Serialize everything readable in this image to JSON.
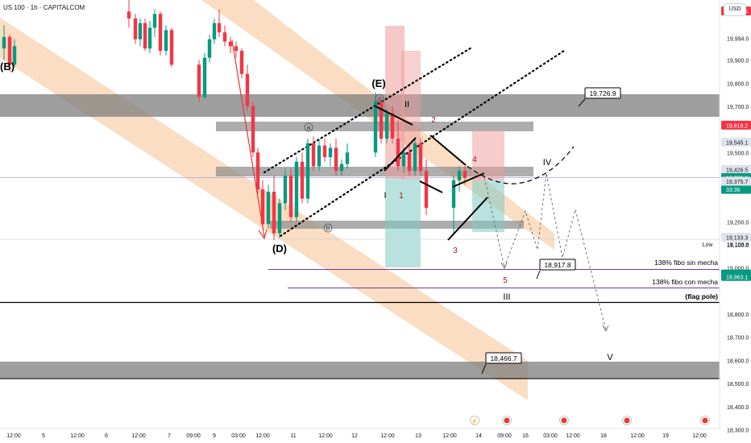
{
  "header": {
    "symbol": "US 100 · 1h · CAPITALCOM",
    "currency": "USD"
  },
  "chart_data": {
    "type": "candlestick",
    "ylim": [
      18250,
      20200
    ],
    "y_ticks": [
      18300,
      18400,
      18500,
      18600,
      18700,
      18800,
      19000,
      19100,
      19200,
      19500,
      19700,
      19800,
      19900,
      19994
    ],
    "y_tick_labels": [
      "18,300.0",
      "18,400.0",
      "18,500.0",
      "18,600.0",
      "18,700.0",
      "18,800.0",
      "19,000.0",
      "19,100.0",
      "19,200.0",
      "19,500.0",
      "19,700.0",
      "19,800.0",
      "19,900.0",
      "19,994.0"
    ],
    "x_labels": [
      "12:00",
      "5",
      "12:00",
      "6",
      "12:00",
      "7",
      "09:00",
      "9",
      "03:00",
      "12:00",
      "11",
      "12:00",
      "12",
      "12:00",
      "13",
      "12:00",
      "14",
      "09:00",
      "16",
      "03:00",
      "12:00",
      "18",
      "12:00",
      "19",
      "12:00"
    ],
    "price_badges": [
      {
        "label": "20,112.6",
        "value": 20112.6,
        "color": "#f23645"
      },
      {
        "label": "19,618.2",
        "value": 19618.2,
        "color": "#f23645"
      },
      {
        "label": "19,545.1",
        "value": 19545.1,
        "color": "#e0e3eb"
      },
      {
        "label": "19,426.5",
        "value": 19426.5,
        "color": "#e0e3eb"
      },
      {
        "label": "19,391.1",
        "value": 19391.1,
        "color": "#089981"
      },
      {
        "label": "33:36",
        "value": 19340,
        "color": "#089981"
      },
      {
        "label": "19,375.7",
        "value": 19375.7,
        "color": "#e0e3eb"
      },
      {
        "label": "19,133.3",
        "value": 19133.3,
        "color": "#e0e3eb"
      },
      {
        "label": "18,973.9",
        "value": 18973.9,
        "color": "#089981"
      },
      {
        "label": "18,963.1",
        "value": 18963.1,
        "color": "#089981"
      }
    ],
    "low_label": {
      "label": "Low",
      "value": "19,103.8"
    },
    "horizontal_levels": [
      {
        "name": "138% fibo sin mecha",
        "value": 18973.9,
        "color": "#6a3d9a"
      },
      {
        "name": "138% fibo con mecha",
        "value": 18900,
        "color": "#6a3d9a"
      },
      {
        "name": "(flag pole)",
        "value": 18830,
        "color": "#000000"
      },
      {
        "name": "",
        "value": 18440,
        "color": "#000000"
      }
    ],
    "price_callouts": [
      "19,726.9",
      "18,917.8",
      "18,466.7"
    ],
    "wave_labels": {
      "major": [
        "(B)",
        "(D)",
        "(E)"
      ],
      "minor": [
        "a",
        "b",
        "c"
      ],
      "roman": [
        "I",
        "II",
        "III",
        "IV",
        "V"
      ],
      "numeric": [
        "1",
        "2",
        "3",
        "4",
        "5"
      ]
    },
    "candles": [
      [
        19950,
        20050,
        19900,
        20000
      ],
      [
        20000,
        20010,
        19850,
        19880
      ],
      [
        19880,
        19990,
        19870,
        19960
      ],
      [
        20110,
        20190,
        20040,
        20080
      ],
      [
        20080,
        20100,
        19970,
        19990
      ],
      [
        19990,
        20080,
        19960,
        20060
      ],
      [
        20060,
        20080,
        19940,
        19950
      ],
      [
        19950,
        20070,
        19930,
        20040
      ],
      [
        20040,
        20120,
        20000,
        20100
      ],
      [
        20100,
        20110,
        19920,
        19940
      ],
      [
        19940,
        20050,
        19920,
        20030
      ],
      [
        20030,
        20040,
        19870,
        19880
      ],
      [
        19880,
        19900,
        19720,
        19740
      ],
      [
        19740,
        19930,
        19730,
        19910
      ],
      [
        19910,
        20010,
        19890,
        19990
      ],
      [
        19990,
        20080,
        19970,
        20060
      ],
      [
        20060,
        20120,
        20000,
        20020
      ],
      [
        20020,
        20050,
        19960,
        19980
      ],
      [
        19980,
        20000,
        19930,
        19960
      ],
      [
        19960,
        19980,
        19910,
        19940
      ],
      [
        19940,
        19950,
        19820,
        19840
      ],
      [
        19840,
        19880,
        19680,
        19700
      ],
      [
        19700,
        19720,
        19480,
        19500
      ],
      [
        19500,
        19520,
        19320,
        19340
      ],
      [
        19340,
        19380,
        19170,
        19190
      ],
      [
        19190,
        19360,
        19170,
        19330
      ],
      [
        19330,
        19400,
        19120,
        19150
      ],
      [
        19150,
        19300,
        19130,
        19280
      ],
      [
        19280,
        19430,
        19250,
        19400
      ],
      [
        19400,
        19430,
        19200,
        19220
      ],
      [
        19220,
        19480,
        19200,
        19460
      ],
      [
        19460,
        19500,
        19280,
        19300
      ],
      [
        19300,
        19560,
        19280,
        19540
      ],
      [
        19540,
        19570,
        19420,
        19440
      ],
      [
        19440,
        19560,
        19420,
        19530
      ],
      [
        19530,
        19560,
        19460,
        19480
      ],
      [
        19480,
        19540,
        19440,
        19520
      ],
      [
        19520,
        19560,
        19400,
        19420
      ],
      [
        19420,
        19470,
        19400,
        19450
      ],
      [
        19450,
        19540,
        19430,
        19500
      ],
      [
        19500,
        19760,
        19480,
        19720
      ],
      [
        19720,
        19740,
        19540,
        19560
      ],
      [
        19560,
        19690,
        19540,
        19670
      ],
      [
        19670,
        19700,
        19540,
        19560
      ],
      [
        19560,
        19640,
        19420,
        19440
      ],
      [
        19440,
        19520,
        19410,
        19500
      ],
      [
        19500,
        19540,
        19400,
        19420
      ],
      [
        19420,
        19560,
        19400,
        19540
      ],
      [
        19540,
        19560,
        19400,
        19420
      ],
      [
        19420,
        19470,
        19230,
        19260
      ],
      [
        19260,
        19400,
        19150,
        19380
      ],
      [
        19380,
        19440,
        19330,
        19420
      ],
      [
        19420,
        19440,
        19360,
        19390
      ]
    ]
  }
}
